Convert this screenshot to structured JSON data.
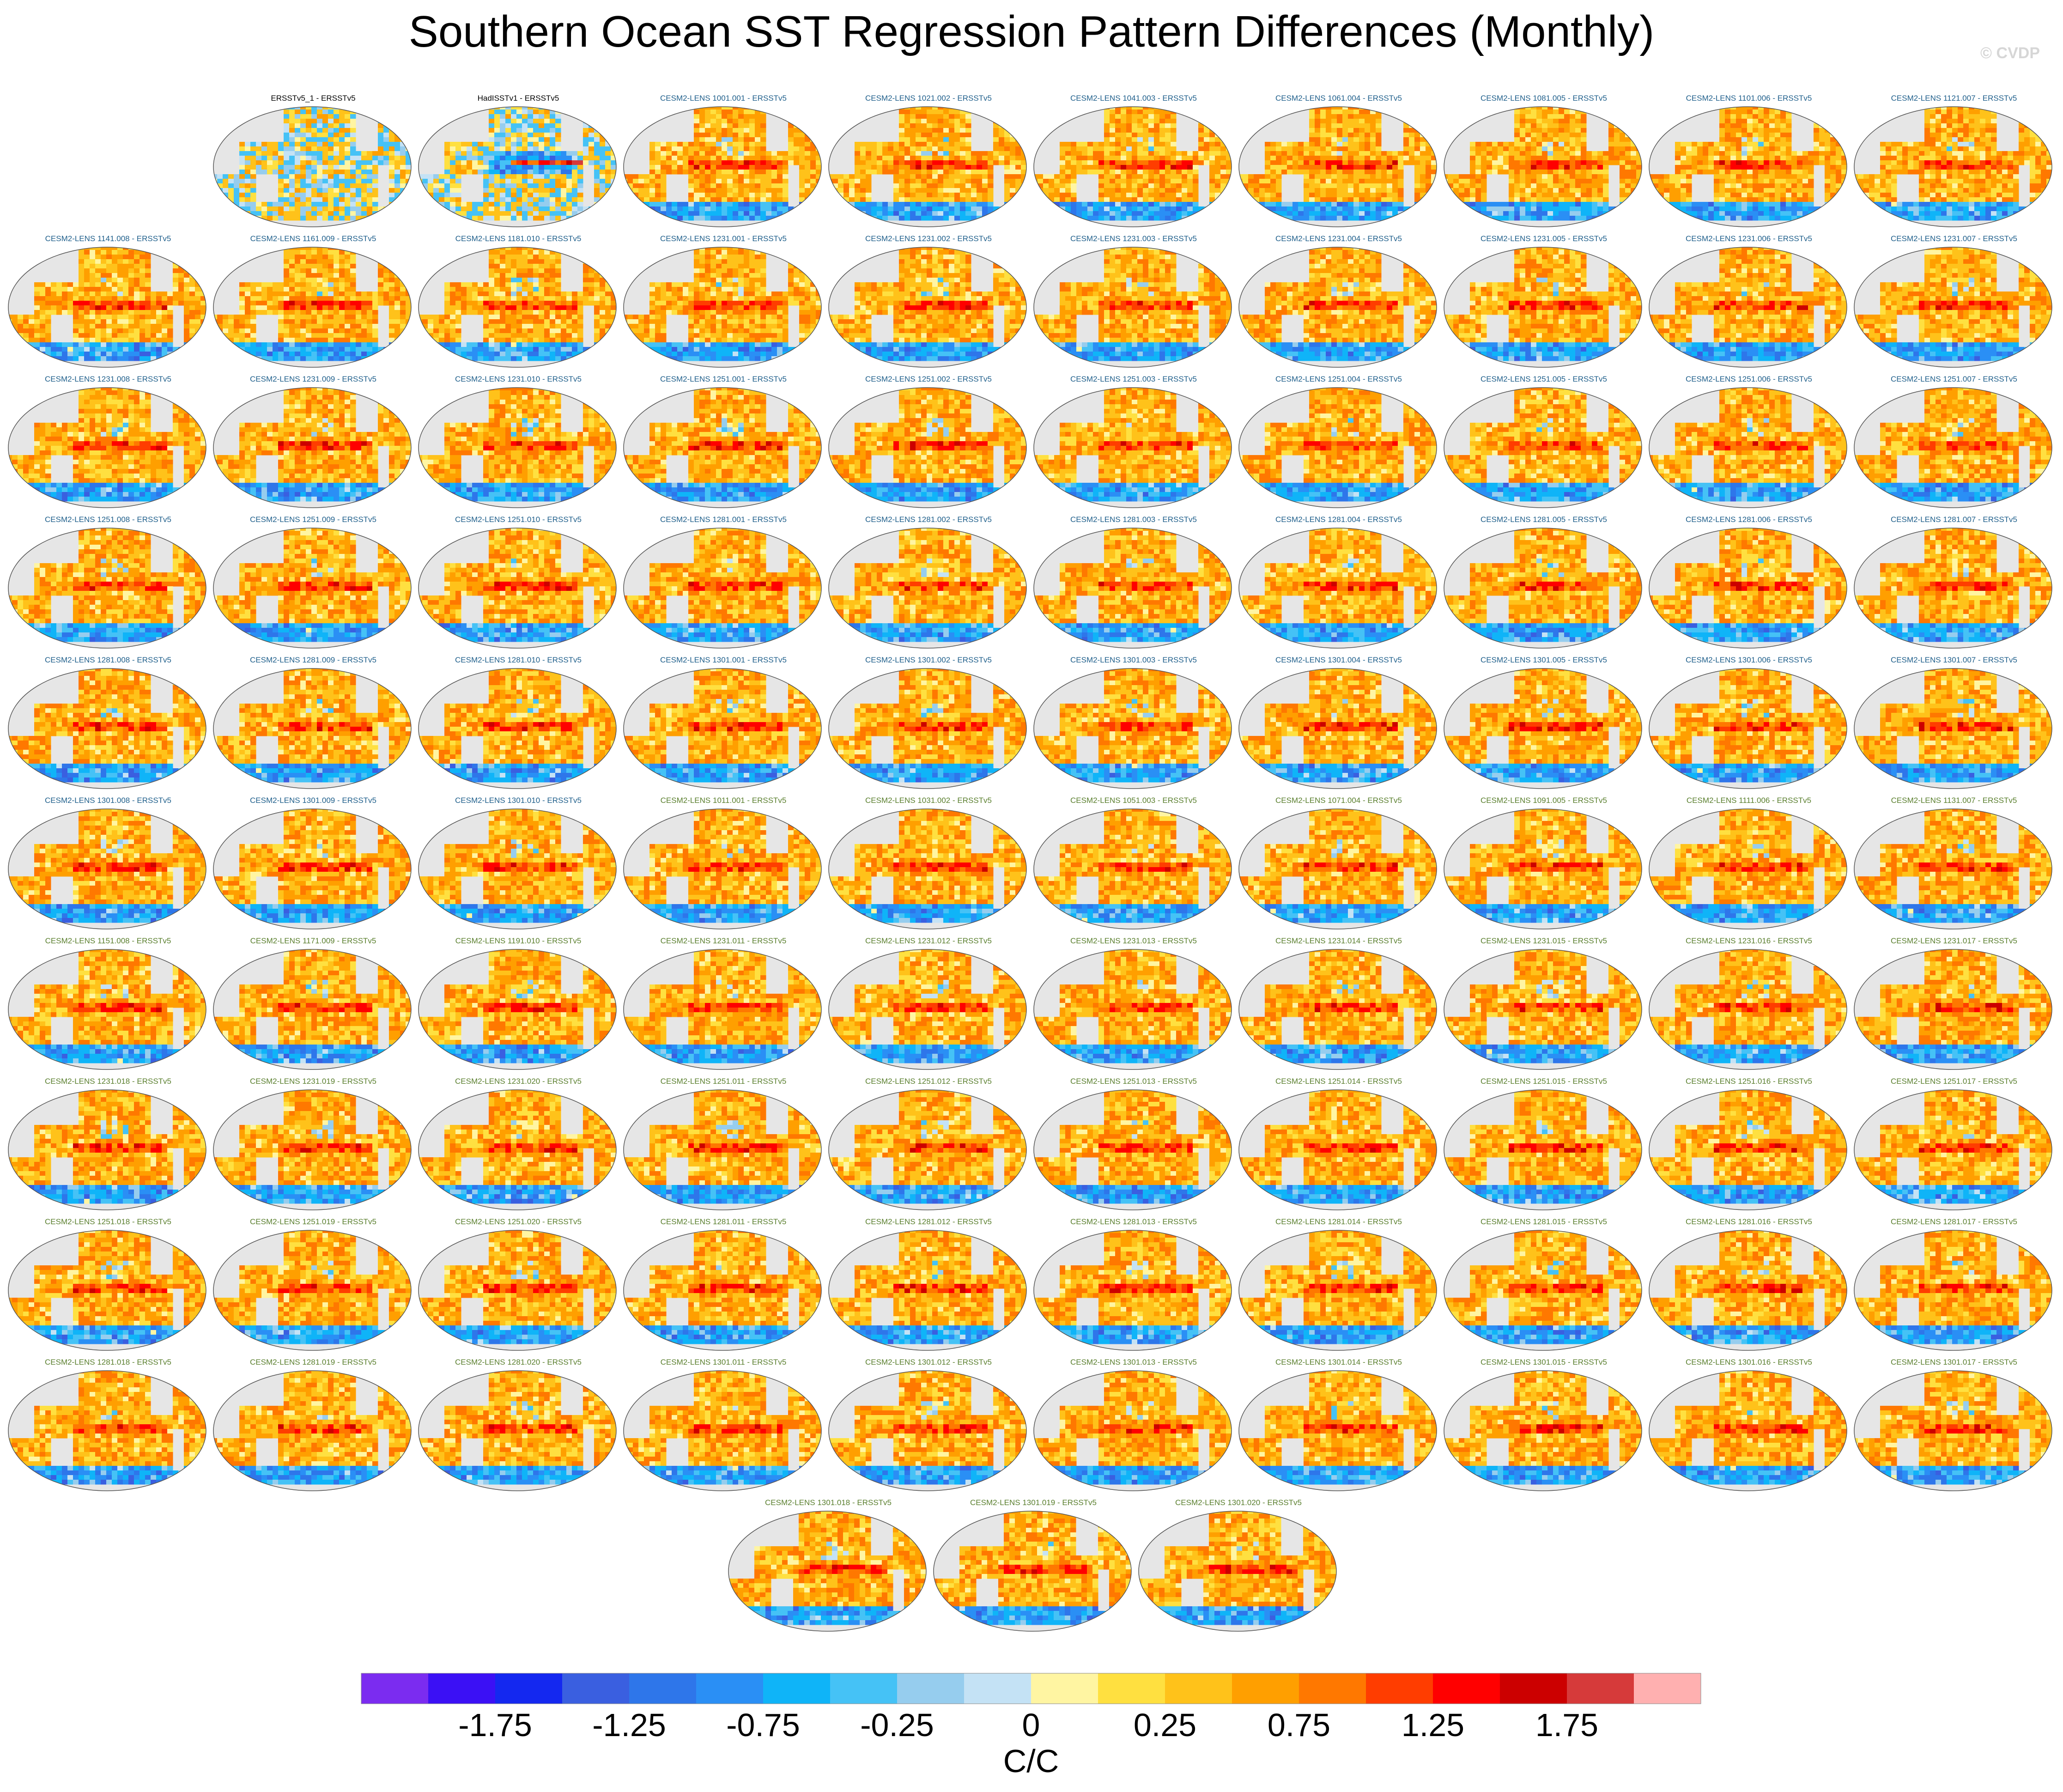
{
  "title": "Southern Ocean SST Regression Pattern Differences (Monthly)",
  "watermark": "© CVDP",
  "chart_data": {
    "type": "heatmap",
    "title": "Southern Ocean SST Regression Pattern Differences (Monthly)",
    "projection": "global map panels (Robinson-like), Pacific-centered",
    "panels": [
      {
        "label": "ERSSTv5_1 - ERSSTv5",
        "group": "obs"
      },
      {
        "label": "HadISSTv1 - ERSSTv5",
        "group": "obs"
      },
      {
        "label": "CESM2-LENS 1001.001 - ERSSTv5",
        "group": "ens1"
      },
      {
        "label": "CESM2-LENS 1021.002 - ERSSTv5",
        "group": "ens1"
      },
      {
        "label": "CESM2-LENS 1041.003 - ERSSTv5",
        "group": "ens1"
      },
      {
        "label": "CESM2-LENS 1061.004 - ERSSTv5",
        "group": "ens1"
      },
      {
        "label": "CESM2-LENS 1081.005 - ERSSTv5",
        "group": "ens1"
      },
      {
        "label": "CESM2-LENS 1101.006 - ERSSTv5",
        "group": "ens1"
      },
      {
        "label": "CESM2-LENS 1121.007 - ERSSTv5",
        "group": "ens1"
      },
      {
        "label": "CESM2-LENS 1141.008 - ERSSTv5",
        "group": "ens1"
      },
      {
        "label": "CESM2-LENS 1161.009 - ERSSTv5",
        "group": "ens1"
      },
      {
        "label": "CESM2-LENS 1181.010 - ERSSTv5",
        "group": "ens1"
      },
      {
        "label": "CESM2-LENS 1231.001 - ERSSTv5",
        "group": "ens1"
      },
      {
        "label": "CESM2-LENS 1231.002 - ERSSTv5",
        "group": "ens1"
      },
      {
        "label": "CESM2-LENS 1231.003 - ERSSTv5",
        "group": "ens1"
      },
      {
        "label": "CESM2-LENS 1231.004 - ERSSTv5",
        "group": "ens1"
      },
      {
        "label": "CESM2-LENS 1231.005 - ERSSTv5",
        "group": "ens1"
      },
      {
        "label": "CESM2-LENS 1231.006 - ERSSTv5",
        "group": "ens1"
      },
      {
        "label": "CESM2-LENS 1231.007 - ERSSTv5",
        "group": "ens1"
      },
      {
        "label": "CESM2-LENS 1231.008 - ERSSTv5",
        "group": "ens1"
      },
      {
        "label": "CESM2-LENS 1231.009 - ERSSTv5",
        "group": "ens1"
      },
      {
        "label": "CESM2-LENS 1231.010 - ERSSTv5",
        "group": "ens1"
      },
      {
        "label": "CESM2-LENS 1251.001 - ERSSTv5",
        "group": "ens1"
      },
      {
        "label": "CESM2-LENS 1251.002 - ERSSTv5",
        "group": "ens1"
      },
      {
        "label": "CESM2-LENS 1251.003 - ERSSTv5",
        "group": "ens1"
      },
      {
        "label": "CESM2-LENS 1251.004 - ERSSTv5",
        "group": "ens1"
      },
      {
        "label": "CESM2-LENS 1251.005 - ERSSTv5",
        "group": "ens1"
      },
      {
        "label": "CESM2-LENS 1251.006 - ERSSTv5",
        "group": "ens1"
      },
      {
        "label": "CESM2-LENS 1251.007 - ERSSTv5",
        "group": "ens1"
      },
      {
        "label": "CESM2-LENS 1251.008 - ERSSTv5",
        "group": "ens1"
      },
      {
        "label": "CESM2-LENS 1251.009 - ERSSTv5",
        "group": "ens1"
      },
      {
        "label": "CESM2-LENS 1251.010 - ERSSTv5",
        "group": "ens1"
      },
      {
        "label": "CESM2-LENS 1281.001 - ERSSTv5",
        "group": "ens1"
      },
      {
        "label": "CESM2-LENS 1281.002 - ERSSTv5",
        "group": "ens1"
      },
      {
        "label": "CESM2-LENS 1281.003 - ERSSTv5",
        "group": "ens1"
      },
      {
        "label": "CESM2-LENS 1281.004 - ERSSTv5",
        "group": "ens1"
      },
      {
        "label": "CESM2-LENS 1281.005 - ERSSTv5",
        "group": "ens1"
      },
      {
        "label": "CESM2-LENS 1281.006 - ERSSTv5",
        "group": "ens1"
      },
      {
        "label": "CESM2-LENS 1281.007 - ERSSTv5",
        "group": "ens1"
      },
      {
        "label": "CESM2-LENS 1281.008 - ERSSTv5",
        "group": "ens1"
      },
      {
        "label": "CESM2-LENS 1281.009 - ERSSTv5",
        "group": "ens1"
      },
      {
        "label": "CESM2-LENS 1281.010 - ERSSTv5",
        "group": "ens1"
      },
      {
        "label": "CESM2-LENS 1301.001 - ERSSTv5",
        "group": "ens1"
      },
      {
        "label": "CESM2-LENS 1301.002 - ERSSTv5",
        "group": "ens1"
      },
      {
        "label": "CESM2-LENS 1301.003 - ERSSTv5",
        "group": "ens1"
      },
      {
        "label": "CESM2-LENS 1301.004 - ERSSTv5",
        "group": "ens1"
      },
      {
        "label": "CESM2-LENS 1301.005 - ERSSTv5",
        "group": "ens1"
      },
      {
        "label": "CESM2-LENS 1301.006 - ERSSTv5",
        "group": "ens1"
      },
      {
        "label": "CESM2-LENS 1301.007 - ERSSTv5",
        "group": "ens1"
      },
      {
        "label": "CESM2-LENS 1301.008 - ERSSTv5",
        "group": "ens1"
      },
      {
        "label": "CESM2-LENS 1301.009 - ERSSTv5",
        "group": "ens1"
      },
      {
        "label": "CESM2-LENS 1301.010 - ERSSTv5",
        "group": "ens1"
      },
      {
        "label": "CESM2-LENS 1011.001 - ERSSTv5",
        "group": "ens2"
      },
      {
        "label": "CESM2-LENS 1031.002 - ERSSTv5",
        "group": "ens2"
      },
      {
        "label": "CESM2-LENS 1051.003 - ERSSTv5",
        "group": "ens2"
      },
      {
        "label": "CESM2-LENS 1071.004 - ERSSTv5",
        "group": "ens2"
      },
      {
        "label": "CESM2-LENS 1091.005 - ERSSTv5",
        "group": "ens2"
      },
      {
        "label": "CESM2-LENS 1111.006 - ERSSTv5",
        "group": "ens2"
      },
      {
        "label": "CESM2-LENS 1131.007 - ERSSTv5",
        "group": "ens2"
      },
      {
        "label": "CESM2-LENS 1151.008 - ERSSTv5",
        "group": "ens2"
      },
      {
        "label": "CESM2-LENS 1171.009 - ERSSTv5",
        "group": "ens2"
      },
      {
        "label": "CESM2-LENS 1191.010 - ERSSTv5",
        "group": "ens2"
      },
      {
        "label": "CESM2-LENS 1231.011 - ERSSTv5",
        "group": "ens2"
      },
      {
        "label": "CESM2-LENS 1231.012 - ERSSTv5",
        "group": "ens2"
      },
      {
        "label": "CESM2-LENS 1231.013 - ERSSTv5",
        "group": "ens2"
      },
      {
        "label": "CESM2-LENS 1231.014 - ERSSTv5",
        "group": "ens2"
      },
      {
        "label": "CESM2-LENS 1231.015 - ERSSTv5",
        "group": "ens2"
      },
      {
        "label": "CESM2-LENS 1231.016 - ERSSTv5",
        "group": "ens2"
      },
      {
        "label": "CESM2-LENS 1231.017 - ERSSTv5",
        "group": "ens2"
      },
      {
        "label": "CESM2-LENS 1231.018 - ERSSTv5",
        "group": "ens2"
      },
      {
        "label": "CESM2-LENS 1231.019 - ERSSTv5",
        "group": "ens2"
      },
      {
        "label": "CESM2-LENS 1231.020 - ERSSTv5",
        "group": "ens2"
      },
      {
        "label": "CESM2-LENS 1251.011 - ERSSTv5",
        "group": "ens2"
      },
      {
        "label": "CESM2-LENS 1251.012 - ERSSTv5",
        "group": "ens2"
      },
      {
        "label": "CESM2-LENS 1251.013 - ERSSTv5",
        "group": "ens2"
      },
      {
        "label": "CESM2-LENS 1251.014 - ERSSTv5",
        "group": "ens2"
      },
      {
        "label": "CESM2-LENS 1251.015 - ERSSTv5",
        "group": "ens2"
      },
      {
        "label": "CESM2-LENS 1251.016 - ERSSTv5",
        "group": "ens2"
      },
      {
        "label": "CESM2-LENS 1251.017 - ERSSTv5",
        "group": "ens2"
      },
      {
        "label": "CESM2-LENS 1251.018 - ERSSTv5",
        "group": "ens2"
      },
      {
        "label": "CESM2-LENS 1251.019 - ERSSTv5",
        "group": "ens2"
      },
      {
        "label": "CESM2-LENS 1251.020 - ERSSTv5",
        "group": "ens2"
      },
      {
        "label": "CESM2-LENS 1281.011 - ERSSTv5",
        "group": "ens2"
      },
      {
        "label": "CESM2-LENS 1281.012 - ERSSTv5",
        "group": "ens2"
      },
      {
        "label": "CESM2-LENS 1281.013 - ERSSTv5",
        "group": "ens2"
      },
      {
        "label": "CESM2-LENS 1281.014 - ERSSTv5",
        "group": "ens2"
      },
      {
        "label": "CESM2-LENS 1281.015 - ERSSTv5",
        "group": "ens2"
      },
      {
        "label": "CESM2-LENS 1281.016 - ERSSTv5",
        "group": "ens2"
      },
      {
        "label": "CESM2-LENS 1281.017 - ERSSTv5",
        "group": "ens2"
      },
      {
        "label": "CESM2-LENS 1281.018 - ERSSTv5",
        "group": "ens2"
      },
      {
        "label": "CESM2-LENS 1281.019 - ERSSTv5",
        "group": "ens2"
      },
      {
        "label": "CESM2-LENS 1281.020 - ERSSTv5",
        "group": "ens2"
      },
      {
        "label": "CESM2-LENS 1301.011 - ERSSTv5",
        "group": "ens2"
      },
      {
        "label": "CESM2-LENS 1301.012 - ERSSTv5",
        "group": "ens2"
      },
      {
        "label": "CESM2-LENS 1301.013 - ERSSTv5",
        "group": "ens2"
      },
      {
        "label": "CESM2-LENS 1301.014 - ERSSTv5",
        "group": "ens2"
      },
      {
        "label": "CESM2-LENS 1301.015 - ERSSTv5",
        "group": "ens2"
      },
      {
        "label": "CESM2-LENS 1301.016 - ERSSTv5",
        "group": "ens2"
      },
      {
        "label": "CESM2-LENS 1301.017 - ERSSTv5",
        "group": "ens2"
      },
      {
        "label": "CESM2-LENS 1301.018 - ERSSTv5",
        "group": "ens2"
      },
      {
        "label": "CESM2-LENS 1301.019 - ERSSTv5",
        "group": "ens2"
      },
      {
        "label": "CESM2-LENS 1301.020 - ERSSTv5",
        "group": "ens2"
      }
    ],
    "colorbar": {
      "unit_label": "C/C",
      "levels": [
        -2,
        -1.75,
        -1.5,
        -1.25,
        -1,
        -0.75,
        -0.5,
        -0.25,
        -0.1,
        0,
        0.1,
        0.25,
        0.5,
        0.75,
        1,
        1.25,
        1.5,
        1.75,
        2
      ],
      "tick_labels": [
        "-1.75",
        "-1.25",
        "-0.75",
        "-0.25",
        "0",
        "0.25",
        "0.75",
        "1.25",
        "1.75"
      ],
      "colors": [
        "#7b2cf0",
        "#3b10f5",
        "#1428f0",
        "#3a5fe0",
        "#2e76ea",
        "#2a8ff5",
        "#0fb4f8",
        "#45c2f6",
        "#96cdee",
        "#c4e2f5",
        "#fff5a2",
        "#ffe040",
        "#ffc21a",
        "#ff9f00",
        "#ff7800",
        "#ff3d00",
        "#ff0000",
        "#cc0000",
        "#d63a3a",
        "#ffb0b0"
      ]
    },
    "land_color": "#e6e6e6",
    "ocean_background": "#ffffff"
  }
}
